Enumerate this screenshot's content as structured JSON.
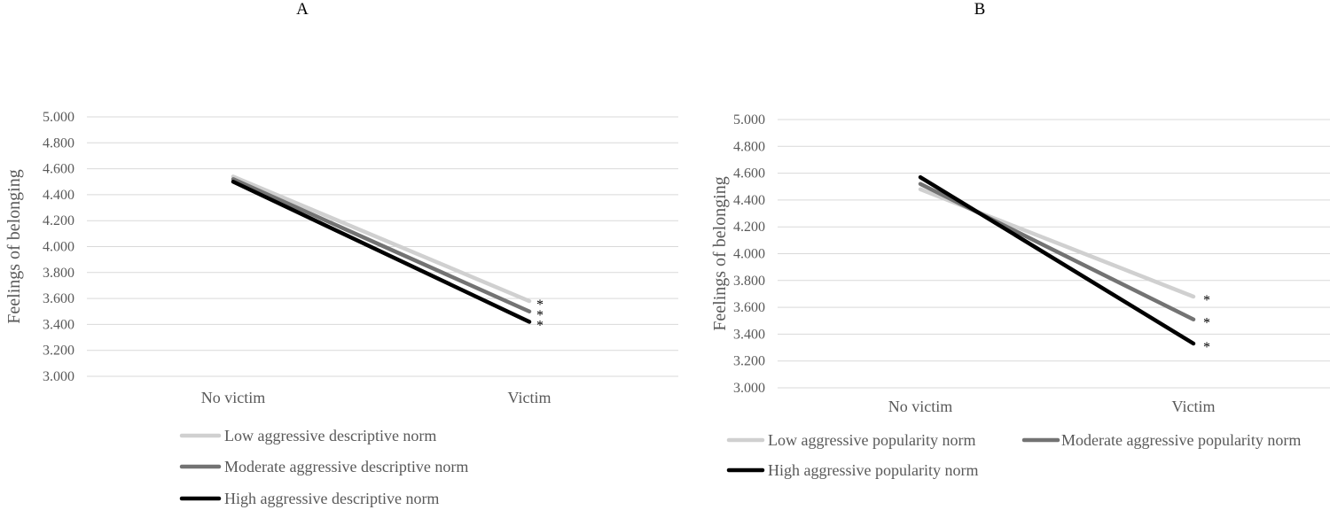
{
  "chart_data": [
    {
      "type": "line",
      "panel_label": "A",
      "ylabel": "Feelings of belonging",
      "categories": [
        "No victim",
        "Victim"
      ],
      "ylim": [
        3.0,
        5.0
      ],
      "yticks": [
        "5.000",
        "4.800",
        "4.600",
        "4.400",
        "4.200",
        "4.000",
        "3.800",
        "3.600",
        "3.400",
        "3.200",
        "3.000"
      ],
      "grid": true,
      "legend_position": "bottom",
      "series": [
        {
          "name": "Low aggressive descriptive norm",
          "color": "#d0d0d0",
          "values": [
            4.54,
            3.58
          ],
          "marker": "*"
        },
        {
          "name": "Moderate aggressive descriptive norm",
          "color": "#737373",
          "values": [
            4.52,
            3.5
          ],
          "marker": "*"
        },
        {
          "name": "High aggressive descriptive norm",
          "color": "#000000",
          "values": [
            4.5,
            3.42
          ],
          "marker": "*"
        }
      ]
    },
    {
      "type": "line",
      "panel_label": "B",
      "ylabel": "Feelings of belonging",
      "categories": [
        "No victim",
        "Victim"
      ],
      "ylim": [
        3.0,
        5.0
      ],
      "yticks": [
        "5.000",
        "4.800",
        "4.600",
        "4.400",
        "4.200",
        "4.000",
        "3.800",
        "3.600",
        "3.400",
        "3.200",
        "3.000"
      ],
      "grid": true,
      "legend_position": "bottom",
      "series": [
        {
          "name": "Low aggressive popularity norm",
          "color": "#d0d0d0",
          "values": [
            4.48,
            3.68
          ],
          "marker": "*"
        },
        {
          "name": "Moderate aggressive popularity norm",
          "color": "#737373",
          "values": [
            4.52,
            3.51
          ],
          "marker": "*"
        },
        {
          "name": "High aggressive popularity norm",
          "color": "#000000",
          "values": [
            4.57,
            3.33
          ],
          "marker": "*"
        }
      ]
    }
  ]
}
